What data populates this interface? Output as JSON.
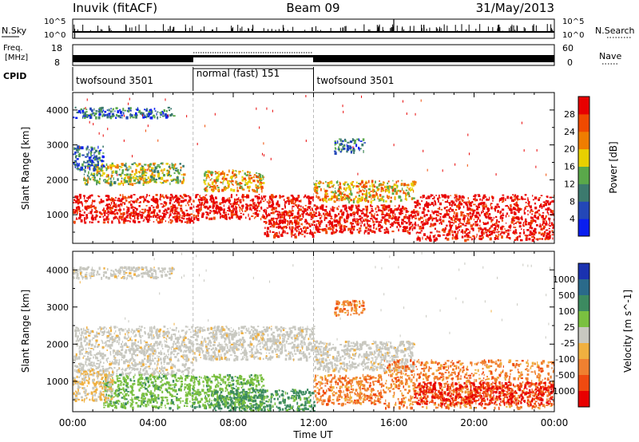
{
  "header": {
    "station": "Inuvik (fitACF)",
    "beam": "Beam 09",
    "date": "31/May/2013"
  },
  "top_panels": {
    "nsky_label": "N.Sky",
    "nsky_tick_top": "10^5",
    "nsky_tick_bottom": "10^0",
    "nsearch_label": "N.Search",
    "nsearch_tick_top": "10^5",
    "nsearch_tick_bottom": "10^0",
    "freq_label_line1": "Freq.",
    "freq_label_line2": "[MHz]",
    "freq_tick_top": "18",
    "freq_tick_bottom": "8",
    "nave_label": "Nave",
    "nave_tick_top": "60",
    "nave_tick_bottom": "0",
    "cpid_label": "CPID",
    "modes": [
      {
        "label": "twofsound 3501",
        "start_hour": 0,
        "end_hour": 6
      },
      {
        "label": "normal (fast) 151",
        "start_hour": 6,
        "end_hour": 12
      },
      {
        "label": "twofsound 3501",
        "start_hour": 12,
        "end_hour": 24
      }
    ]
  },
  "chart_data": [
    {
      "type": "heatmap",
      "panel": "power",
      "ylabel": "Slant Range [km]",
      "xlabel": "",
      "x_ticks": [
        "00:00",
        "04:00",
        "08:00",
        "12:00",
        "16:00",
        "20:00",
        "00:00"
      ],
      "x_range_hours": [
        0,
        24
      ],
      "y_ticks": [
        1000,
        2000,
        3000,
        4000
      ],
      "ylim": [
        180,
        4500
      ],
      "colorbar_title": "Power [dB]",
      "colorbar_ticks": [
        4,
        8,
        12,
        16,
        20,
        24,
        28
      ],
      "colorbar_colors": [
        "#0a1ef0",
        "#2347b8",
        "#3c7a6e",
        "#5aa84a",
        "#e8d000",
        "#f07d00",
        "#f04a00",
        "#e80000"
      ],
      "echo_regions": [
        {
          "t0": 0.0,
          "t1": 6.0,
          "r0": 800,
          "r1": 1600,
          "value": 26
        },
        {
          "t0": 0.5,
          "t1": 5.5,
          "r0": 1900,
          "r1": 2500,
          "value": 16
        },
        {
          "t0": 6.0,
          "t1": 12.0,
          "r0": 900,
          "r1": 1600,
          "value": 26
        },
        {
          "t0": 6.5,
          "t1": 9.5,
          "r0": 1700,
          "r1": 2300,
          "value": 20
        },
        {
          "t0": 9.5,
          "t1": 12.0,
          "r0": 400,
          "r1": 900,
          "value": 28
        },
        {
          "t0": 12.0,
          "t1": 17.0,
          "r0": 1400,
          "r1": 2000,
          "value": 20
        },
        {
          "t0": 12.0,
          "t1": 17.0,
          "r0": 500,
          "r1": 1300,
          "value": 26
        },
        {
          "t0": 17.0,
          "t1": 24.0,
          "r0": 300,
          "r1": 1600,
          "value": 28
        },
        {
          "t0": 0.0,
          "t1": 5.0,
          "r0": 3800,
          "r1": 4100,
          "value": 8
        },
        {
          "t0": 0.0,
          "t1": 1.5,
          "r0": 2300,
          "r1": 3000,
          "value": 8
        },
        {
          "t0": 13.0,
          "t1": 14.5,
          "r0": 2800,
          "r1": 3200,
          "value": 8
        }
      ]
    },
    {
      "type": "heatmap",
      "panel": "velocity",
      "ylabel": "Slant Range [km]",
      "xlabel": "Time UT",
      "x_ticks": [
        "00:00",
        "04:00",
        "08:00",
        "12:00",
        "16:00",
        "20:00",
        "00:00"
      ],
      "x_range_hours": [
        0,
        24
      ],
      "y_ticks": [
        1000,
        2000,
        3000,
        4000
      ],
      "ylim": [
        180,
        4500
      ],
      "colorbar_title": "Velocity [m s^-1]",
      "colorbar_ticks": [
        "1000",
        "500",
        "100",
        "25",
        "-25",
        "-100",
        "-500",
        "-1000"
      ],
      "colorbar_colors": [
        "#1a32b0",
        "#2a6a8a",
        "#3c8a60",
        "#7ac040",
        "#c8c8c0",
        "#f0b040",
        "#f08030",
        "#f04a10",
        "#e80000"
      ],
      "echo_regions": [
        {
          "t0": 0.0,
          "t1": 6.0,
          "r0": 1200,
          "r1": 2500,
          "value": "ground"
        },
        {
          "t0": 6.0,
          "t1": 12.0,
          "r0": 1600,
          "r1": 2500,
          "value": "ground"
        },
        {
          "t0": 12.0,
          "t1": 17.0,
          "r0": 1300,
          "r1": 2100,
          "value": "ground"
        },
        {
          "t0": 1.5,
          "t1": 9.5,
          "r0": 300,
          "r1": 1200,
          "value": "green"
        },
        {
          "t0": 7.0,
          "t1": 12.0,
          "r0": 180,
          "r1": 800,
          "value": "darkgreen"
        },
        {
          "t0": 0.0,
          "t1": 2.0,
          "r0": 500,
          "r1": 1300,
          "value": "beige"
        },
        {
          "t0": 15.5,
          "t1": 24.0,
          "r0": 300,
          "r1": 1600,
          "value": "orange"
        },
        {
          "t0": 12.0,
          "t1": 15.5,
          "r0": 400,
          "r1": 1200,
          "value": "orange"
        },
        {
          "t0": 17.0,
          "t1": 24.0,
          "r0": 400,
          "r1": 1000,
          "value": "red"
        },
        {
          "t0": 0.0,
          "t1": 5.0,
          "r0": 3800,
          "r1": 4100,
          "value": "ground"
        },
        {
          "t0": 13.0,
          "t1": 14.5,
          "r0": 2800,
          "r1": 3200,
          "value": "orange"
        }
      ]
    }
  ]
}
